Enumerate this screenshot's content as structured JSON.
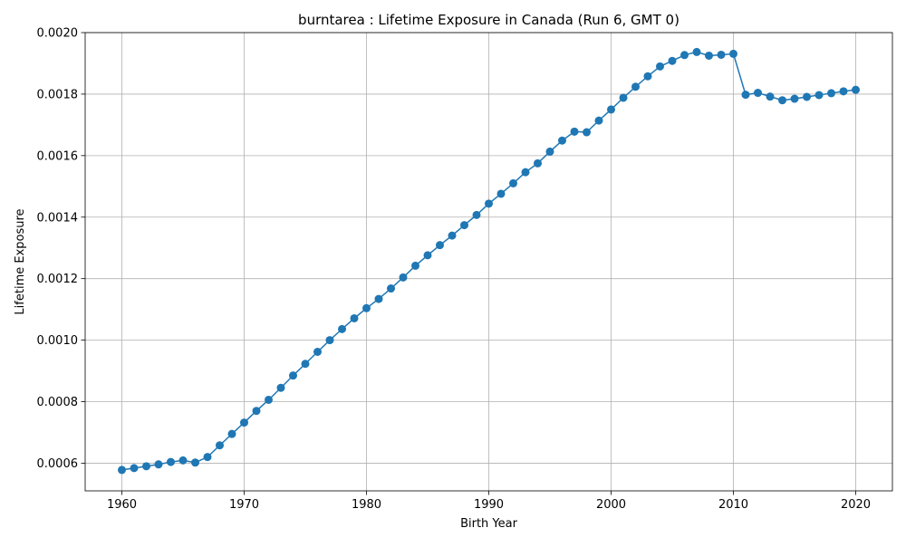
{
  "chart_data": {
    "type": "line",
    "title": "burntarea : Lifetime Exposure in Canada (Run 6, GMT 0)",
    "xlabel": "Birth Year",
    "ylabel": "Lifetime Exposure",
    "xlim": [
      1957,
      2023
    ],
    "ylim": [
      0.00051,
      0.002
    ],
    "xticks": [
      1960,
      1970,
      1980,
      1990,
      2000,
      2010,
      2020
    ],
    "xtick_labels": [
      "1960",
      "1970",
      "1980",
      "1990",
      "2000",
      "2010",
      "2020"
    ],
    "yticks": [
      0.0006,
      0.0008,
      0.001,
      0.0012,
      0.0014,
      0.0016,
      0.0018,
      0.002
    ],
    "ytick_labels": [
      "0.0006",
      "0.0008",
      "0.0010",
      "0.0012",
      "0.0014",
      "0.0016",
      "0.0018",
      "0.0020"
    ],
    "grid": true,
    "color": "#1f77b4",
    "marker": "circle",
    "x": [
      1960,
      1961,
      1962,
      1963,
      1964,
      1965,
      1966,
      1967,
      1968,
      1969,
      1970,
      1971,
      1972,
      1973,
      1974,
      1975,
      1976,
      1977,
      1978,
      1979,
      1980,
      1981,
      1982,
      1983,
      1984,
      1985,
      1986,
      1987,
      1988,
      1989,
      1990,
      1991,
      1992,
      1993,
      1994,
      1995,
      1996,
      1997,
      1998,
      1999,
      2000,
      2001,
      2002,
      2003,
      2004,
      2005,
      2006,
      2007,
      2008,
      2009,
      2010,
      2011,
      2012,
      2013,
      2014,
      2015,
      2016,
      2017,
      2018,
      2019,
      2020
    ],
    "y": [
      0.000578,
      0.000584,
      0.00059,
      0.000596,
      0.000604,
      0.000609,
      0.000602,
      0.00062,
      0.000658,
      0.000695,
      0.000732,
      0.00077,
      0.000806,
      0.000845,
      0.000885,
      0.000923,
      0.000962,
      0.001,
      0.001036,
      0.001071,
      0.001104,
      0.001134,
      0.001168,
      0.001204,
      0.001242,
      0.001276,
      0.001309,
      0.00134,
      0.001374,
      0.001407,
      0.001444,
      0.001476,
      0.00151,
      0.001546,
      0.001575,
      0.001613,
      0.001649,
      0.001678,
      0.001676,
      0.001714,
      0.00175,
      0.001788,
      0.001824,
      0.001858,
      0.00189,
      0.001908,
      0.001927,
      0.001937,
      0.001925,
      0.001928,
      0.001931,
      0.001798,
      0.001804,
      0.001792,
      0.00178,
      0.001785,
      0.001791,
      0.001797,
      0.001803,
      0.001809,
      0.001814
    ]
  }
}
